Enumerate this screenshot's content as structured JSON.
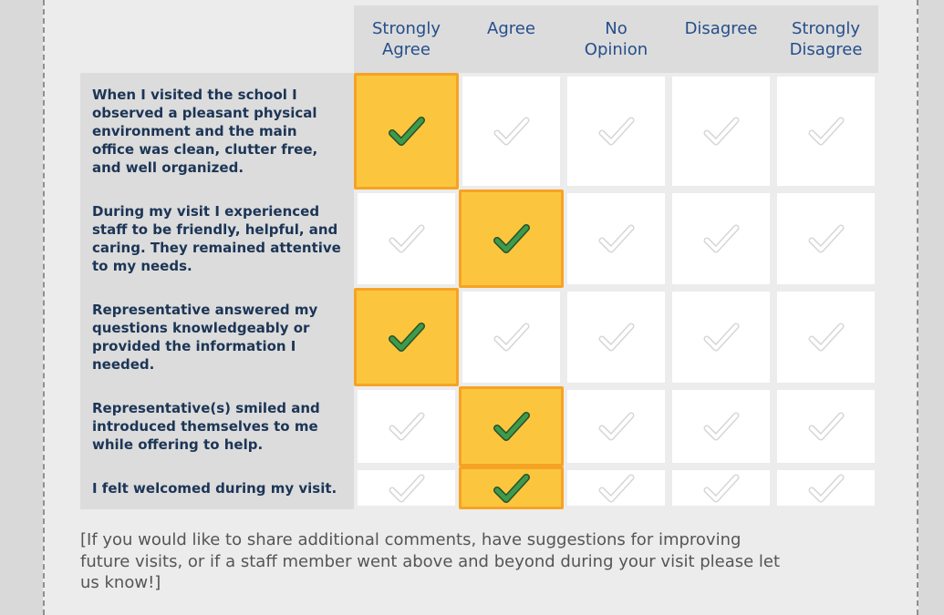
{
  "scale": {
    "options": [
      "Strongly Agree",
      "Agree",
      "No Opinion",
      "Disagree",
      "Strongly Disagree"
    ],
    "headers": [
      [
        "Strongly",
        "Agree"
      ],
      [
        "Agree"
      ],
      [
        "No",
        "Opinion"
      ],
      [
        "Disagree"
      ],
      [
        "Strongly",
        "Disagree"
      ]
    ]
  },
  "questions": [
    {
      "lines": [
        "When I visited the school I",
        "observed a pleasant physical",
        "environment and the main",
        "office was clean, clutter free,",
        "and well organized."
      ],
      "selected": "Strongly Agree"
    },
    {
      "lines": [
        "During my visit I experienced",
        "staff to be friendly, helpful, and",
        "caring. They remained attentive",
        "to my needs."
      ],
      "selected": "Agree"
    },
    {
      "lines": [
        "Representative answered my",
        "questions knowledgeably or",
        "provided the information I",
        "needed."
      ],
      "selected": "Strongly Agree"
    },
    {
      "lines": [
        "Representative(s) smiled and",
        "introduced themselves to me",
        "while offering to help."
      ],
      "selected": "Agree"
    },
    {
      "lines": [
        "I felt welcomed during my visit."
      ],
      "selected": "Agree"
    }
  ],
  "comments_prompt": [
    "[If you would like to share additional comments, have suggestions for improving",
    "future visits, or if a staff member went above and beyond during your visit please let",
    "us know!]"
  ],
  "colors": {
    "selected_fill": "#fbc63d",
    "selected_border": "#f6a324",
    "check_selected": "#3d9b4a",
    "check_unselected": "#d6d6d6",
    "header_text": "#254e8a",
    "question_text": "#1c3556"
  },
  "icons": {
    "check": "checkmark-icon"
  }
}
